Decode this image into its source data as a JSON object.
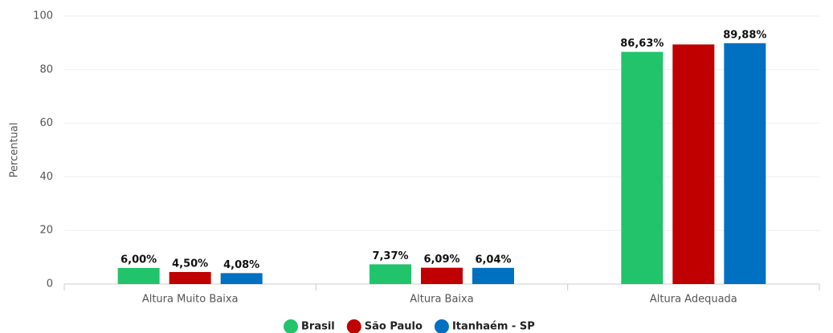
{
  "chart_data": {
    "type": "bar",
    "y_label": "Percentual",
    "categories": [
      "Altura Muito Baixa",
      "Altura Baixa",
      "Altura Adequada"
    ],
    "series": [
      {
        "name": "Brasil",
        "color": "#21c46b",
        "values": [
          6.0,
          7.37,
          86.63
        ],
        "value_labels": [
          "6,00%",
          "7,37%",
          "86,63%"
        ]
      },
      {
        "name": "São Paulo",
        "color": "#c00000",
        "values": [
          4.5,
          6.09,
          89.4
        ],
        "value_labels": [
          "4,50%",
          "6,09%",
          null
        ]
      },
      {
        "name": "Itanhaém - SP",
        "color": "#0070c0",
        "values": [
          4.08,
          6.04,
          89.88
        ],
        "value_labels": [
          "4,08%",
          "6,04%",
          "89,88%"
        ]
      }
    ],
    "ylim": [
      0,
      100
    ],
    "yticks": [
      0,
      20,
      40,
      60,
      80,
      100
    ],
    "grid": true
  }
}
